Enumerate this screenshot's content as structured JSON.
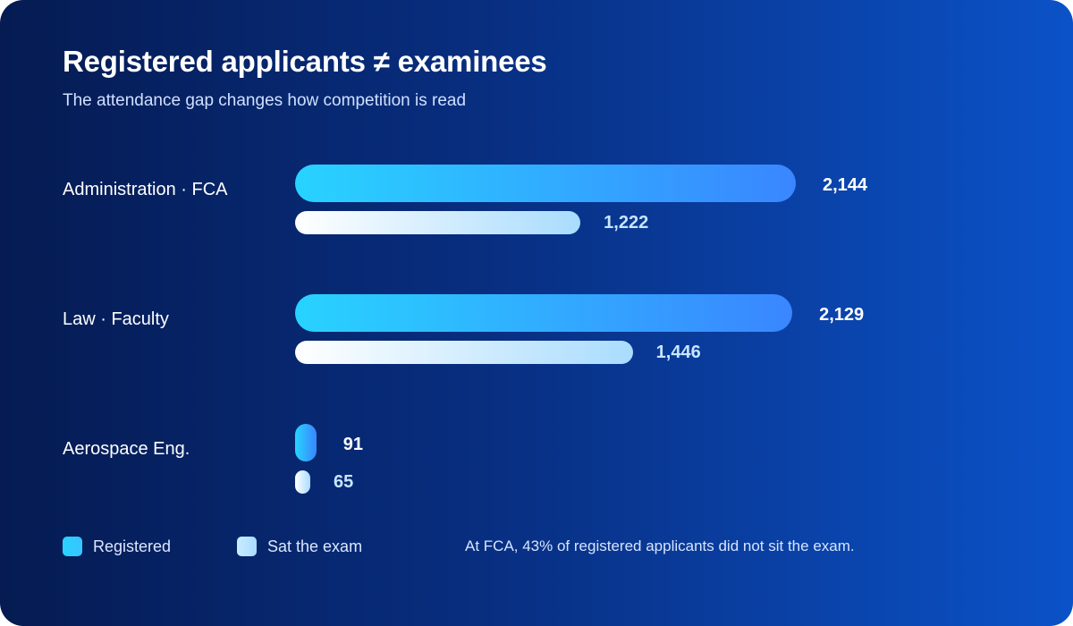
{
  "chart_data": {
    "type": "bar",
    "orientation": "horizontal",
    "title": "Registered applicants ≠ examinees",
    "subtitle": "The attendance gap changes how competition is read",
    "categories": [
      "Administration · FCA",
      "Law · Faculty",
      "Aerospace Eng."
    ],
    "series": [
      {
        "name": "Registered",
        "values": [
          2144,
          2129,
          91
        ],
        "labels": [
          "2,144",
          "2,129",
          "91"
        ],
        "color": "#28d3ff"
      },
      {
        "name": "Sat the exam",
        "values": [
          1222,
          1446,
          65
        ],
        "labels": [
          "1,222",
          "1,446",
          "65"
        ],
        "color": "#a9dcff"
      }
    ],
    "annotation": "At FCA, 43% of registered applicants did not sit the exam.",
    "grid": false,
    "legend_position": "bottom-left"
  }
}
